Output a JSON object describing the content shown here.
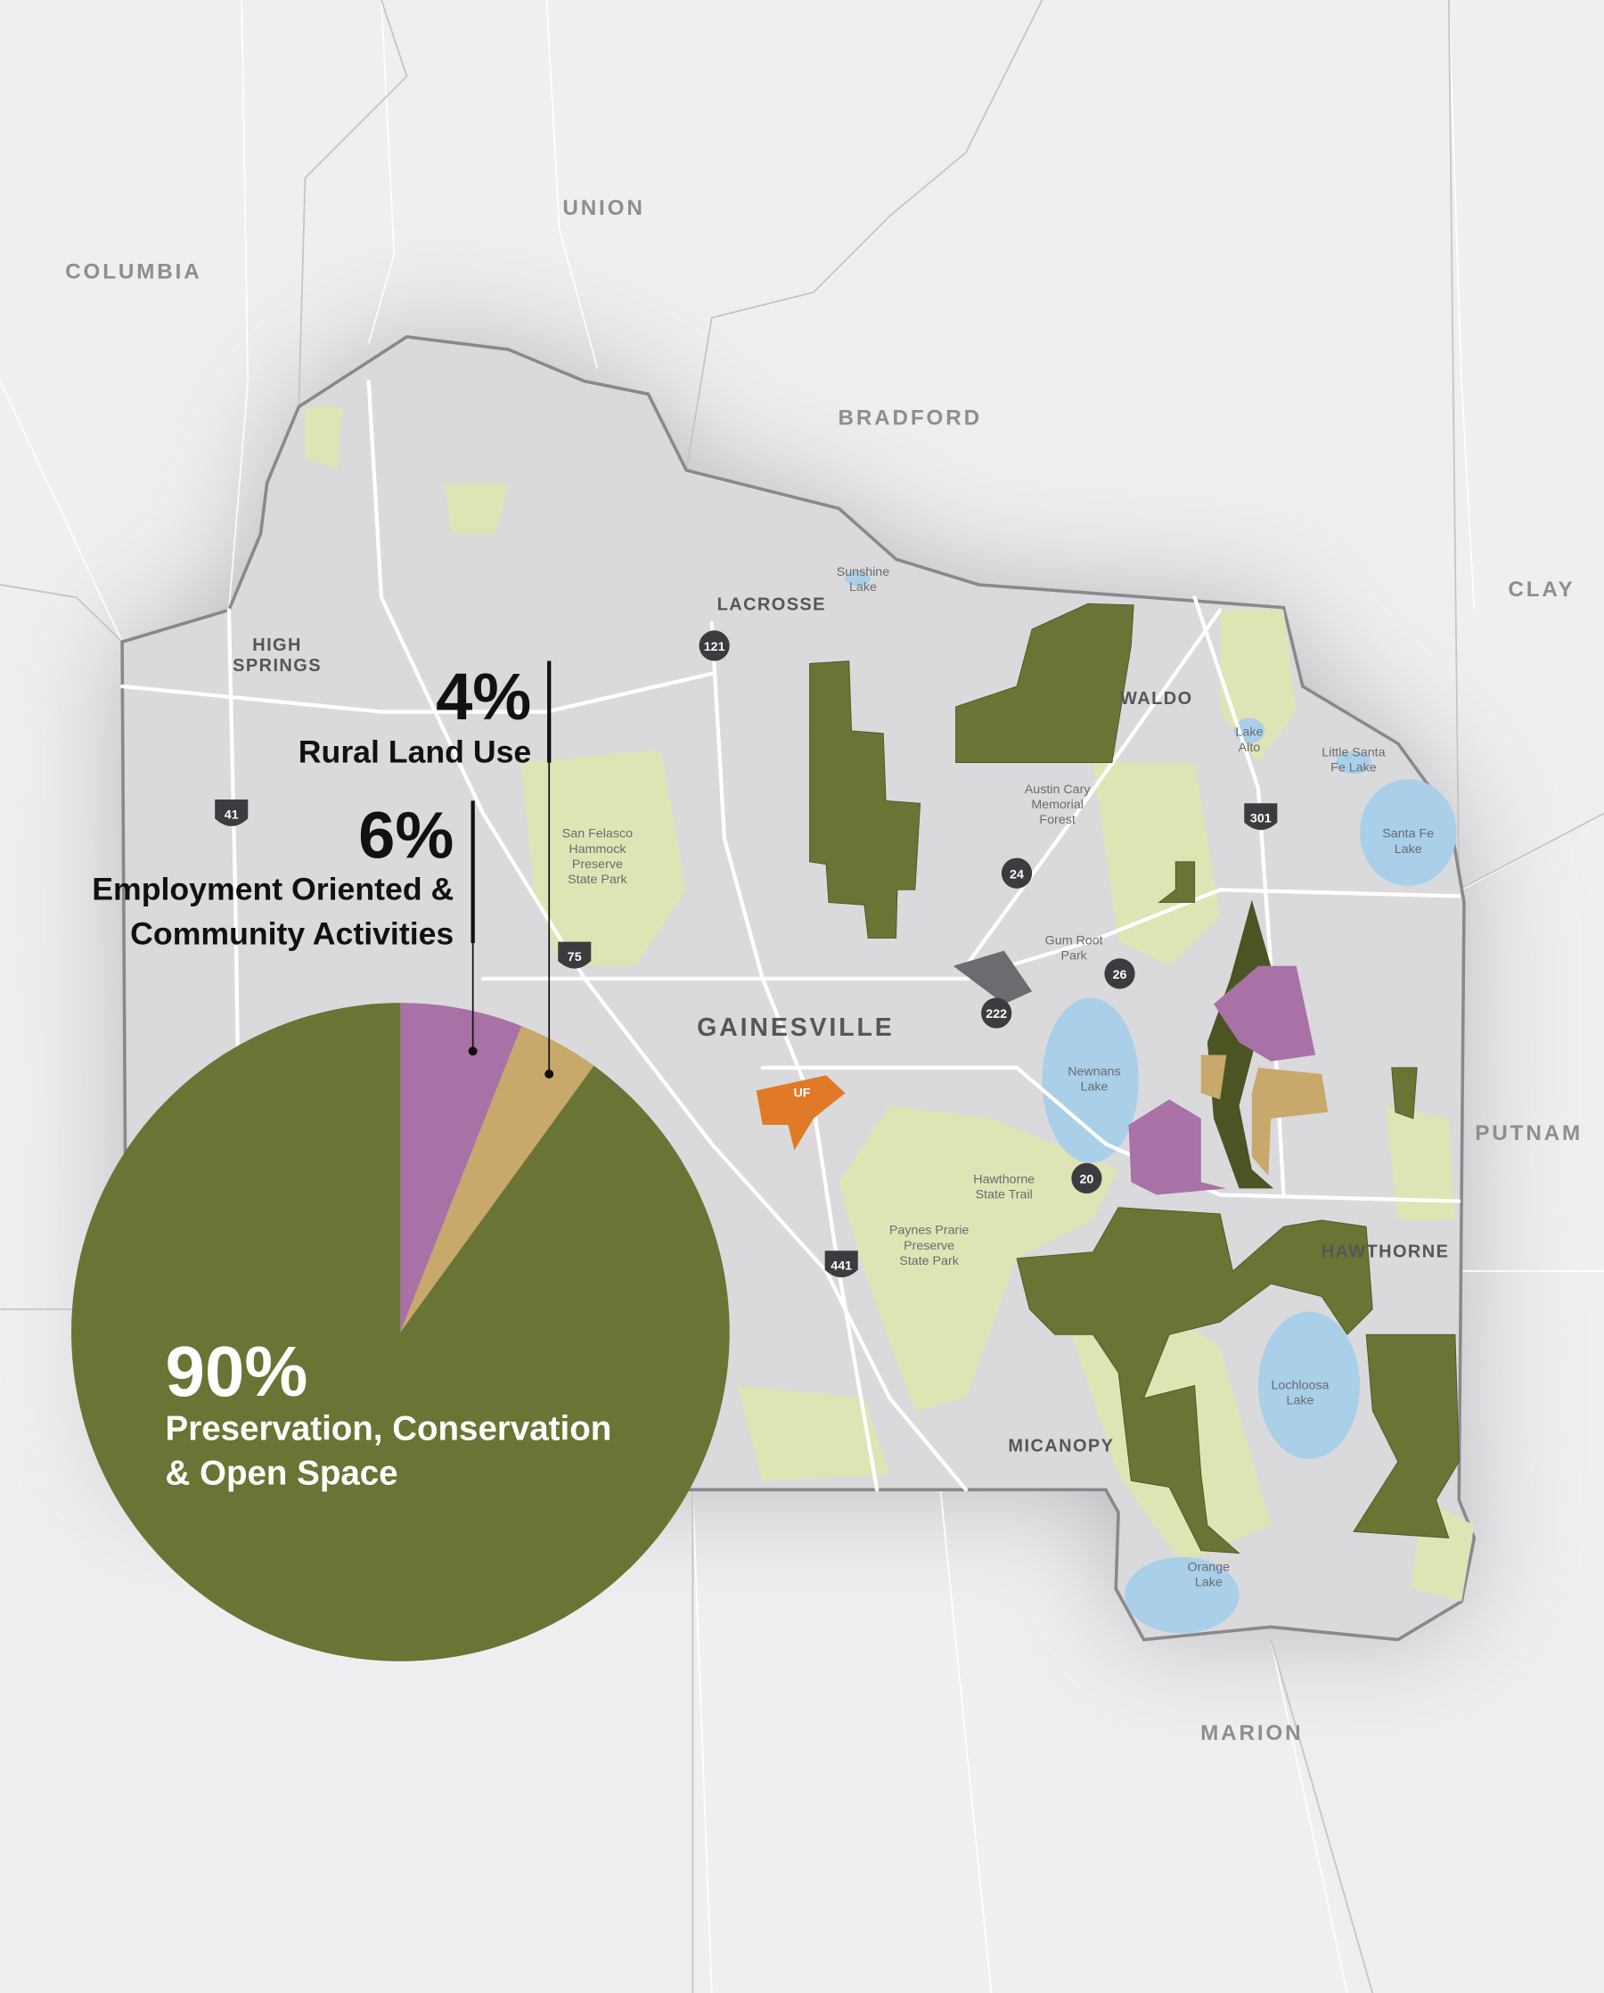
{
  "map": {
    "counties": [
      "COLUMBIA",
      "UNION",
      "BRADFORD",
      "CLAY",
      "PUTNAM",
      "MARION"
    ],
    "cities": [
      "HIGH\nSPRINGS",
      "LACROSSE",
      "WALDO",
      "GAINESVILLE",
      "HAWTHORNE",
      "MICANOPY"
    ],
    "places": [
      "Sunshine\nLake",
      "Lake\nAlto",
      "Little Santa\nFe Lake",
      "Santa Fe\nLake",
      "Austin Cary\nMemorial\nForest",
      "San Felasco\nHammock\nPreserve\nState Park",
      "Gum Root\nPark",
      "Newnans\nLake",
      "Hawthorne\nState Trail",
      "Paynes Prarie\nPreserve\nState Park",
      "Lochloosa\nLake",
      "Orange\nLake"
    ],
    "roads": [
      "121",
      "41",
      "75",
      "24",
      "301",
      "26",
      "222",
      "20",
      "441"
    ],
    "campus": "UF"
  },
  "chart_data": {
    "type": "pie",
    "categories": [
      "Employment Oriented &\nCommunity Activities",
      "Rural Land Use",
      "Preservation, Conservation\n& Open Space"
    ],
    "values": [
      6,
      4,
      90
    ],
    "value_labels": [
      "6%",
      "4%",
      "90%"
    ],
    "colors": [
      "#a872a6",
      "#c8a86b",
      "#6a7434"
    ]
  }
}
